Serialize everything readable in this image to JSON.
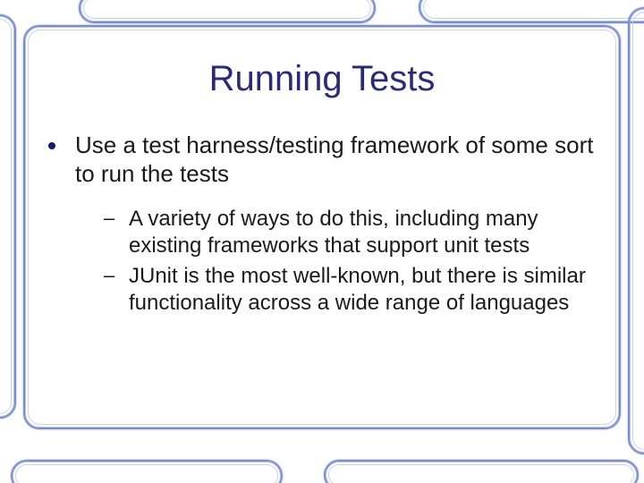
{
  "slide": {
    "title": "Running Tests",
    "title_color": "#2a2a7a",
    "title_fontsize": 40,
    "body_color": "#1a1a1a",
    "body_fontsize_l1": 26,
    "body_fontsize_l2": 24,
    "background_color": "#ffffff",
    "frame_border_color": "#7a8fc9",
    "frame_inner_color": "#c8d2ee",
    "bullets": [
      {
        "text": "Use a test harness/testing framework of some sort to run the tests",
        "children": [
          {
            "text": "A variety of ways to do this, including many existing frameworks that support unit tests"
          },
          {
            "text": "JUnit is the most well-known, but there is similar functionality across a wide range of languages"
          }
        ]
      }
    ]
  }
}
